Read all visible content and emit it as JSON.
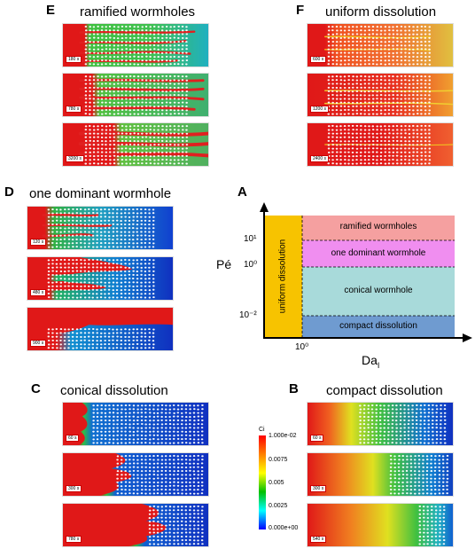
{
  "panels": {
    "E": {
      "letter": "E",
      "title": "ramified wormholes",
      "times": [
        "180 s",
        "780 s",
        "3200 s"
      ]
    },
    "F": {
      "letter": "F",
      "title": "uniform dissolution",
      "times": [
        "600 s",
        "1200 s",
        "2400 s"
      ]
    },
    "D": {
      "letter": "D",
      "title": "one dominant wormhole",
      "times": [
        "120 s",
        "480 s",
        "900 s"
      ]
    },
    "C": {
      "letter": "C",
      "title": "conical dissolution",
      "times": [
        "60 s",
        "300 s",
        "780 s"
      ]
    },
    "B": {
      "letter": "B",
      "title": "compact dissolution",
      "times": [
        "60 s",
        "300 s",
        "540 s"
      ]
    }
  },
  "phase_diagram": {
    "letter": "A",
    "y_axis_label": "Pé",
    "x_axis_label": "Da",
    "x_axis_subscript": "I",
    "y_ticks": [
      "10¹",
      "10⁰",
      "10⁻²"
    ],
    "x_tick": "10⁰",
    "regimes": [
      {
        "label": "uniform dissolution",
        "color": "#f7c300"
      },
      {
        "label": "ramified wormholes",
        "color": "#f5a0a0"
      },
      {
        "label": "one dominant wormhole",
        "color": "#f08ef0"
      },
      {
        "label": "conical wormhole",
        "color": "#a8dada"
      },
      {
        "label": "compact dissolution",
        "color": "#6f9bd0"
      }
    ]
  },
  "colorbar": {
    "title": "Ci",
    "ticks": [
      "1.000e-02",
      "0.0075",
      "0.005",
      "0.0025",
      "0.000e+00"
    ]
  }
}
